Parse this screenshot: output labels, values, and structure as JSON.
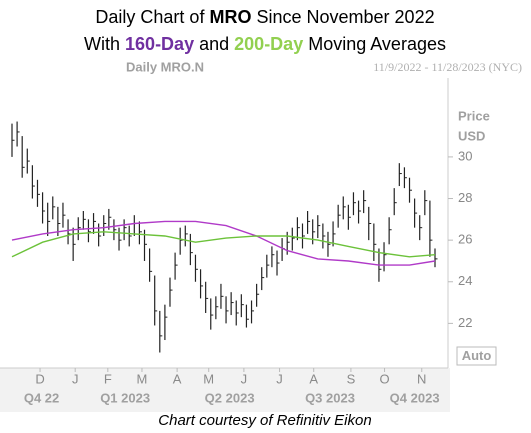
{
  "chart_data": {
    "type": "ohlc",
    "title_parts": [
      "Daily Chart of",
      "MRO",
      "Since November 2022"
    ],
    "subtitle_parts": [
      "With",
      "and",
      "Moving Averages"
    ],
    "header": "Daily MRO.N",
    "range": "11/9/2022 - 11/28/2023 (NYC)",
    "y_label": [
      "Price",
      "USD"
    ],
    "button": "Auto",
    "footer": "Chart courtesy of Refinitiv Eikon",
    "ylim": [
      20,
      33.6
    ],
    "yticks": [
      22,
      24,
      26,
      28,
      30
    ],
    "xlim": [
      0,
      83
    ],
    "xticks": [
      {
        "value": 5.5,
        "label": "D"
      },
      {
        "value": 12.4,
        "label": "J"
      },
      {
        "value": 18.8,
        "label": "F"
      },
      {
        "value": 25.5,
        "label": "M"
      },
      {
        "value": 32.4,
        "label": "A"
      },
      {
        "value": 38.6,
        "label": "M"
      },
      {
        "value": 45.5,
        "label": "J"
      },
      {
        "value": 52.5,
        "label": "J"
      },
      {
        "value": 59.2,
        "label": "A"
      },
      {
        "value": 66.5,
        "label": "S"
      },
      {
        "value": 73.1,
        "label": "O"
      },
      {
        "value": 80.4,
        "label": "N"
      }
    ],
    "quarters": [
      {
        "value": 5.8,
        "label": "Q4 22"
      },
      {
        "value": 22.2,
        "label": "Q1 2023"
      },
      {
        "value": 42.7,
        "label": "Q2 2023"
      },
      {
        "value": 62.4,
        "label": "Q3 2023"
      },
      {
        "value": 79,
        "label": "Q4 2023"
      }
    ],
    "bars": {
      "color": "#222222",
      "high": [
        31.6,
        31.7,
        31.0,
        30.4,
        29.6,
        28.9,
        28.3,
        27.8,
        28.1,
        27.6,
        27.8,
        27.0,
        26.6,
        27.1,
        27.4,
        27.0,
        27.3,
        26.8,
        27.2,
        27.5,
        27.0,
        26.6,
        27.0,
        26.7,
        27.2,
        26.9,
        26.5,
        25.6,
        24.3,
        22.6,
        22.9,
        24.2,
        25.4,
        26.6,
        26.7,
        26.3,
        25.3,
        24.6,
        24.0,
        23.2,
        23.3,
        23.9,
        23.3,
        23.5,
        23.1,
        23.4,
        22.9,
        23.1,
        23.9,
        24.7,
        25.3,
        25.7,
        25.5,
        26.1,
        26.4,
        26.6,
        27.1,
        26.8,
        27.4,
        27.0,
        27.2,
        26.8,
        26.4,
        26.9,
        27.7,
        28.1,
        27.7,
        28.3,
        27.9,
        28.4,
        27.6,
        26.8,
        25.6,
        25.9,
        27.1,
        28.5,
        29.7,
        29.5,
        29.0,
        28.0,
        27.2,
        28.4,
        27.9,
        25.6
      ],
      "low": [
        30.0,
        30.5,
        29.0,
        29.2,
        28.0,
        27.6,
        26.8,
        26.2,
        27.0,
        26.2,
        26.6,
        25.8,
        25.0,
        26.0,
        26.5,
        25.9,
        26.3,
        25.7,
        26.2,
        26.5,
        26.0,
        25.5,
        26.0,
        25.7,
        26.2,
        25.8,
        25.0,
        24.0,
        21.9,
        20.6,
        21.2,
        22.8,
        24.1,
        25.3,
        25.7,
        24.8,
        24.0,
        23.2,
        22.5,
        21.7,
        22.2,
        22.7,
        22.0,
        22.4,
        21.9,
        22.3,
        21.8,
        22.0,
        22.8,
        23.6,
        24.2,
        24.7,
        24.3,
        25.0,
        25.3,
        25.5,
        26.0,
        25.6,
        26.3,
        25.8,
        26.1,
        25.6,
        25.2,
        25.7,
        26.6,
        27.0,
        26.5,
        27.2,
        26.8,
        27.3,
        26.0,
        25.0,
        24.0,
        24.5,
        25.8,
        27.2,
        28.6,
        28.5,
        27.8,
        26.6,
        26.0,
        27.2,
        25.2,
        24.7
      ],
      "close": [
        30.8,
        31.2,
        29.5,
        29.8,
        28.6,
        28.2,
        27.4,
        26.9,
        27.6,
        26.8,
        27.2,
        26.3,
        25.8,
        26.6,
        27.0,
        26.4,
        26.9,
        26.2,
        26.8,
        27.1,
        26.5,
        26.0,
        26.6,
        26.2,
        26.8,
        26.4,
        25.8,
        24.5,
        22.6,
        21.4,
        22.3,
        23.6,
        24.8,
        26.0,
        26.3,
        25.4,
        24.6,
        23.8,
        23.2,
        22.4,
        22.8,
        23.3,
        22.6,
        23.0,
        22.5,
        22.9,
        22.2,
        22.6,
        23.4,
        24.2,
        24.8,
        25.3,
        24.9,
        25.6,
        25.9,
        26.1,
        26.6,
        26.2,
        26.9,
        26.4,
        26.7,
        26.2,
        25.8,
        26.3,
        27.2,
        27.6,
        27.1,
        27.8,
        27.4,
        27.9,
        26.8,
        25.8,
        24.6,
        25.3,
        26.5,
        27.8,
        29.2,
        29.0,
        28.4,
        27.3,
        26.6,
        27.9,
        26.0,
        25.1
      ]
    },
    "series": [
      {
        "name": "160-Day",
        "color": "#b03ac8",
        "title_color": "#7030a0",
        "x": [
          0,
          6,
          12,
          18,
          24,
          30,
          36,
          42,
          48,
          54,
          60,
          66,
          72,
          78,
          83
        ],
        "values": [
          26.0,
          26.3,
          26.5,
          26.6,
          26.8,
          26.9,
          26.9,
          26.7,
          26.2,
          25.5,
          25.1,
          25.0,
          24.8,
          24.8,
          25.0
        ]
      },
      {
        "name": "200-Day",
        "color": "#6cc23a",
        "title_color": "#92d050",
        "x": [
          0,
          6,
          12,
          18,
          24,
          30,
          36,
          42,
          48,
          54,
          60,
          66,
          72,
          78,
          83
        ],
        "values": [
          25.2,
          25.9,
          26.3,
          26.4,
          26.3,
          26.2,
          25.9,
          26.1,
          26.2,
          26.2,
          26.0,
          25.7,
          25.4,
          25.2,
          25.3
        ]
      }
    ]
  }
}
